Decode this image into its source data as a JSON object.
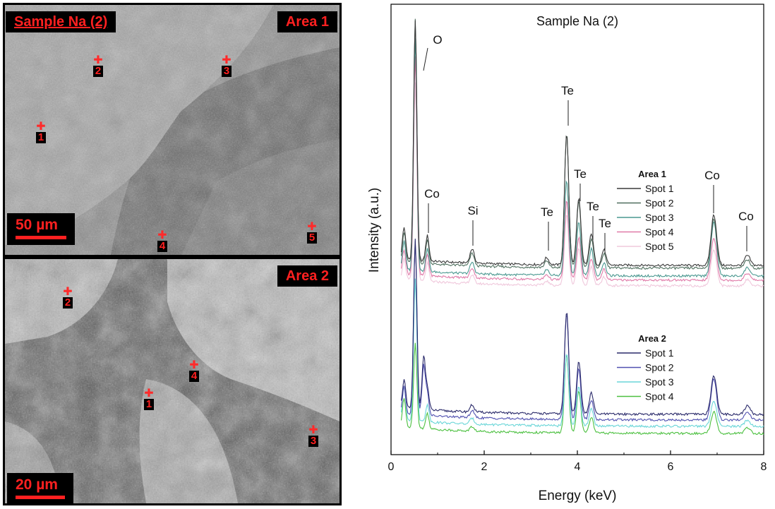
{
  "sem_panels": [
    {
      "title": "Sample Na (2)",
      "area": "Area 1",
      "scale": "50 µm",
      "spots": [
        "1",
        "2",
        "3",
        "4",
        "5"
      ]
    },
    {
      "area": "Area 2",
      "scale": "20 µm",
      "spots": [
        "1",
        "2",
        "3",
        "4"
      ]
    }
  ],
  "colors": {
    "marker": "#ff2020",
    "area1": [
      "#3a3a3a",
      "#4f6f5e",
      "#4a9890",
      "#e07aa8",
      "#f0c8dc"
    ],
    "area2": [
      "#2a2a6a",
      "#5050b0",
      "#6ad6d8",
      "#4cc040"
    ]
  },
  "chart_data": {
    "type": "line",
    "title": "Sample Na (2)",
    "xlabel": "Energy (keV)",
    "ylabel": "Intensity (a.u.)",
    "xlim": [
      0,
      8
    ],
    "xticks": [
      "0",
      "2",
      "4",
      "6",
      "8"
    ],
    "grid": false,
    "groups": [
      {
        "name": "Area 1",
        "series": [
          {
            "name": "Spot 1",
            "peaks": [
              [
                0.28,
                45
              ],
              [
                0.52,
                340
              ],
              [
                0.78,
                36
              ],
              [
                1.74,
                20
              ],
              [
                3.34,
                10
              ],
              [
                3.77,
                185
              ],
              [
                4.03,
                95
              ],
              [
                4.3,
                45
              ],
              [
                4.57,
                22
              ],
              [
                6.93,
                72
              ],
              [
                7.65,
                14
              ]
            ]
          },
          {
            "name": "Spot 2",
            "peaks": [
              [
                0.28,
                42
              ],
              [
                0.52,
                345
              ],
              [
                0.78,
                34
              ],
              [
                1.74,
                18
              ],
              [
                3.34,
                9
              ],
              [
                3.77,
                190
              ],
              [
                4.03,
                95
              ],
              [
                4.3,
                42
              ],
              [
                4.57,
                20
              ],
              [
                6.93,
                70
              ],
              [
                7.65,
                12
              ]
            ]
          },
          {
            "name": "Spot 3",
            "peaks": [
              [
                0.28,
                40
              ],
              [
                0.52,
                330
              ],
              [
                0.78,
                32
              ],
              [
                1.74,
                16
              ],
              [
                3.34,
                8
              ],
              [
                3.77,
                135
              ],
              [
                4.03,
                75
              ],
              [
                4.3,
                38
              ],
              [
                4.57,
                18
              ],
              [
                6.93,
                76
              ],
              [
                7.65,
                12
              ]
            ]
          },
          {
            "name": "Spot 4",
            "peaks": [
              [
                0.28,
                35
              ],
              [
                0.52,
                310
              ],
              [
                0.78,
                30
              ],
              [
                1.74,
                14
              ],
              [
                3.34,
                7
              ],
              [
                3.77,
                112
              ],
              [
                4.03,
                60
              ],
              [
                4.3,
                30
              ],
              [
                4.57,
                15
              ],
              [
                6.93,
                60
              ],
              [
                7.65,
                10
              ]
            ]
          },
          {
            "name": "Spot 5",
            "peaks": [
              [
                0.28,
                30
              ],
              [
                0.52,
                280
              ],
              [
                0.78,
                26
              ],
              [
                1.74,
                12
              ],
              [
                3.34,
                6
              ],
              [
                3.77,
                100
              ],
              [
                4.03,
                52
              ],
              [
                4.3,
                26
              ],
              [
                4.57,
                12
              ],
              [
                6.93,
                52
              ],
              [
                7.65,
                9
              ]
            ]
          }
        ]
      },
      {
        "name": "Area 2",
        "series": [
          {
            "name": "Spot 1",
            "peaks": [
              [
                0.28,
                40
              ],
              [
                0.52,
                240
              ],
              [
                0.7,
                75
              ],
              [
                0.78,
                30
              ],
              [
                1.74,
                10
              ],
              [
                3.77,
                145
              ],
              [
                4.03,
                75
              ],
              [
                4.3,
                30
              ],
              [
                6.93,
                55
              ],
              [
                7.65,
                12
              ]
            ]
          },
          {
            "name": "Spot 2",
            "peaks": [
              [
                0.28,
                38
              ],
              [
                0.52,
                245
              ],
              [
                0.7,
                70
              ],
              [
                0.78,
                30
              ],
              [
                1.74,
                10
              ],
              [
                3.77,
                150
              ],
              [
                4.03,
                72
              ],
              [
                4.3,
                28
              ],
              [
                6.93,
                58
              ],
              [
                7.65,
                12
              ]
            ]
          },
          {
            "name": "Spot 3",
            "peaks": [
              [
                0.28,
                48
              ],
              [
                0.52,
                200
              ],
              [
                0.78,
                25
              ],
              [
                1.74,
                8
              ],
              [
                3.77,
                102
              ],
              [
                4.03,
                55
              ],
              [
                4.3,
                24
              ],
              [
                6.93,
                36
              ],
              [
                7.65,
                9
              ]
            ]
          },
          {
            "name": "Spot 4",
            "peaks": [
              [
                0.28,
                40
              ],
              [
                0.52,
                120
              ],
              [
                0.78,
                22
              ],
              [
                1.74,
                6
              ],
              [
                3.77,
                110
              ],
              [
                4.03,
                60
              ],
              [
                4.3,
                22
              ],
              [
                6.93,
                30
              ],
              [
                7.65,
                8
              ]
            ]
          }
        ]
      }
    ],
    "annotations": [
      {
        "text": "O",
        "x": 0.52
      },
      {
        "text": "Co",
        "x": 0.78
      },
      {
        "text": "Si",
        "x": 1.74
      },
      {
        "text": "Te",
        "x": 3.34
      },
      {
        "text": "Te",
        "x": 3.77
      },
      {
        "text": "Te",
        "x": 4.03
      },
      {
        "text": "Te",
        "x": 4.3
      },
      {
        "text": "Te",
        "x": 4.57
      },
      {
        "text": "Co",
        "x": 6.93
      },
      {
        "text": "Co",
        "x": 7.65
      }
    ]
  }
}
